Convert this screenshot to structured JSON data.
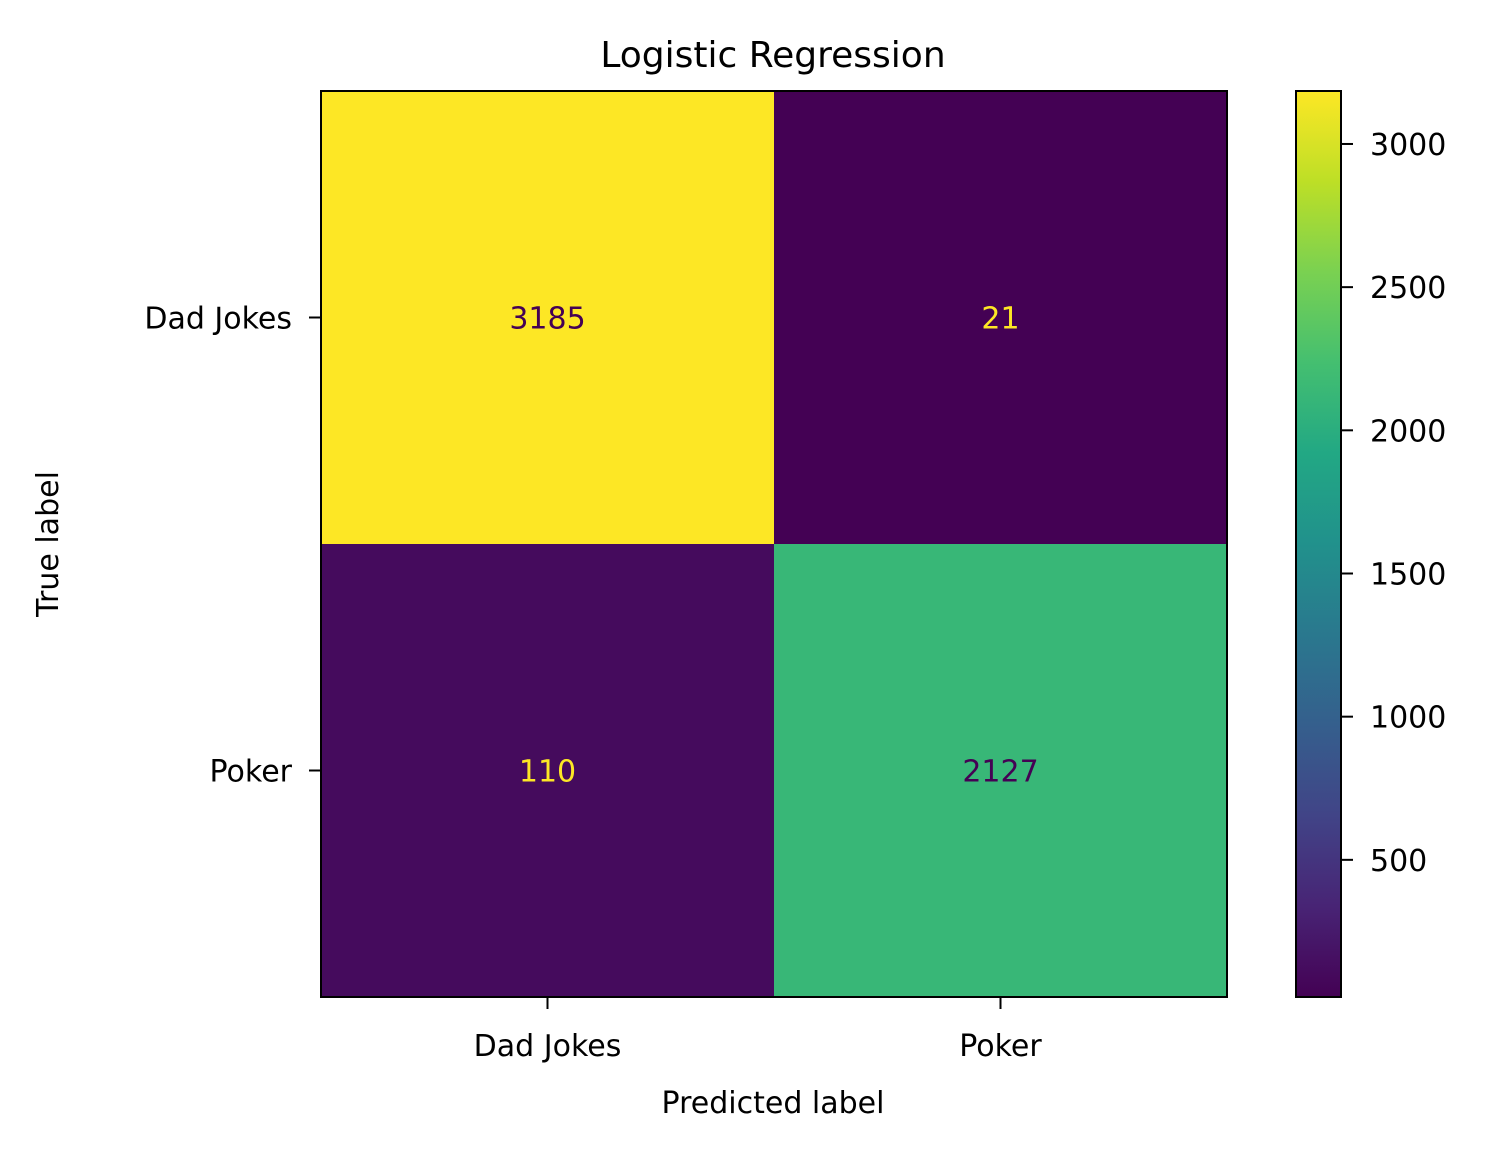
{
  "chart_data": {
    "type": "heatmap",
    "title": "Logistic Regression",
    "xlabel": "Predicted label",
    "ylabel": "True label",
    "x_categories": [
      "Dad Jokes",
      "Poker"
    ],
    "y_categories": [
      "Dad Jokes",
      "Poker"
    ],
    "matrix": [
      [
        3185,
        21
      ],
      [
        110,
        2127
      ]
    ],
    "cell_labels": [
      [
        "3185",
        "21"
      ],
      [
        "110",
        "2127"
      ]
    ],
    "colormap": "viridis",
    "colorbar": {
      "range": [
        21,
        3185
      ],
      "ticks": [
        500,
        1000,
        1500,
        2000,
        2500,
        3000
      ],
      "tick_labels": [
        "500",
        "1000",
        "1500",
        "2000",
        "2500",
        "3000"
      ]
    },
    "text_colors": {
      "on_dark": "#fde725",
      "on_light": "#440154"
    }
  }
}
